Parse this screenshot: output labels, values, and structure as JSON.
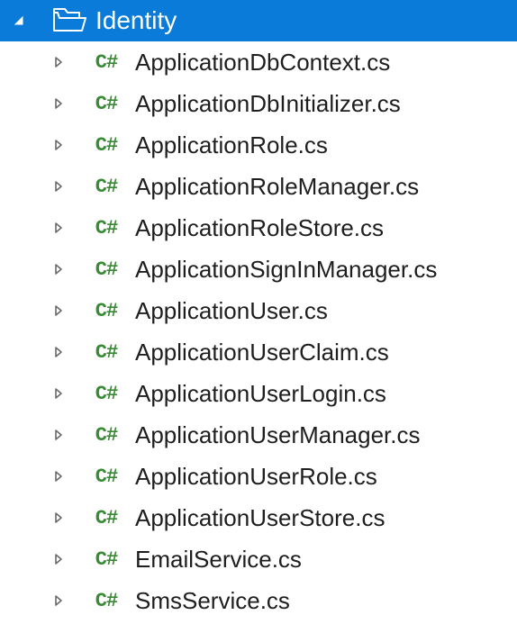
{
  "colors": {
    "selection_bg": "#0b7bda",
    "selection_fg": "#ffffff",
    "text": "#1e1e1e",
    "cs_icon": "#388a34",
    "folder_outline": "#ffffff",
    "arrow_collapsed": "#6a6a6a",
    "arrow_expanded_fill": "#ffffff"
  },
  "typography": {
    "font_family": "Segoe UI",
    "folder_fontsize": 28,
    "file_fontsize": 26,
    "cs_icon_fontsize": 22
  },
  "tree": {
    "root": {
      "label": "Identity",
      "expanded": true,
      "selected": true,
      "icon": "folder-open-icon",
      "children": [
        {
          "label": "ApplicationDbContext.cs",
          "icon": "csharp-icon",
          "expanded": false
        },
        {
          "label": "ApplicationDbInitializer.cs",
          "icon": "csharp-icon",
          "expanded": false
        },
        {
          "label": "ApplicationRole.cs",
          "icon": "csharp-icon",
          "expanded": false
        },
        {
          "label": "ApplicationRoleManager.cs",
          "icon": "csharp-icon",
          "expanded": false
        },
        {
          "label": "ApplicationRoleStore.cs",
          "icon": "csharp-icon",
          "expanded": false
        },
        {
          "label": "ApplicationSignInManager.cs",
          "icon": "csharp-icon",
          "expanded": false
        },
        {
          "label": "ApplicationUser.cs",
          "icon": "csharp-icon",
          "expanded": false
        },
        {
          "label": "ApplicationUserClaim.cs",
          "icon": "csharp-icon",
          "expanded": false
        },
        {
          "label": "ApplicationUserLogin.cs",
          "icon": "csharp-icon",
          "expanded": false
        },
        {
          "label": "ApplicationUserManager.cs",
          "icon": "csharp-icon",
          "expanded": false
        },
        {
          "label": "ApplicationUserRole.cs",
          "icon": "csharp-icon",
          "expanded": false
        },
        {
          "label": "ApplicationUserStore.cs",
          "icon": "csharp-icon",
          "expanded": false
        },
        {
          "label": "EmailService.cs",
          "icon": "csharp-icon",
          "expanded": false
        },
        {
          "label": "SmsService.cs",
          "icon": "csharp-icon",
          "expanded": false
        }
      ]
    }
  },
  "icon_labels": {
    "csharp": "C#"
  }
}
